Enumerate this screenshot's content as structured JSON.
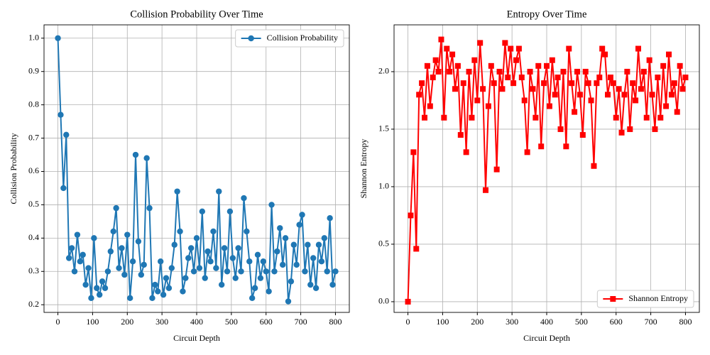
{
  "chart_data": [
    {
      "type": "line",
      "title": "Collision Probability Over Time",
      "x_label": "Circuit Depth",
      "y_label": "Collision Probability",
      "x": [
        0,
        8,
        16,
        24,
        32,
        40,
        48,
        56,
        64,
        72,
        80,
        88,
        96,
        104,
        112,
        120,
        128,
        136,
        144,
        152,
        160,
        168,
        176,
        184,
        192,
        200,
        208,
        216,
        224,
        232,
        240,
        248,
        256,
        264,
        272,
        280,
        288,
        296,
        304,
        312,
        320,
        328,
        336,
        344,
        352,
        360,
        368,
        376,
        384,
        392,
        400,
        408,
        416,
        424,
        432,
        440,
        448,
        456,
        464,
        472,
        480,
        488,
        496,
        504,
        512,
        520,
        528,
        536,
        544,
        552,
        560,
        568,
        576,
        584,
        592,
        600,
        608,
        616,
        624,
        632,
        640,
        648,
        656,
        664,
        672,
        680,
        688,
        696,
        704,
        712,
        720,
        728,
        736,
        744,
        752,
        760,
        768,
        776,
        784,
        792,
        800
      ],
      "series": [
        {
          "name": "Collision Probability",
          "color": "#1f77b4",
          "marker": "o",
          "values": [
            1.0,
            0.77,
            0.55,
            0.71,
            0.34,
            0.37,
            0.3,
            0.41,
            0.33,
            0.35,
            0.26,
            0.31,
            0.22,
            0.4,
            0.25,
            0.23,
            0.27,
            0.25,
            0.3,
            0.36,
            0.42,
            0.49,
            0.31,
            0.37,
            0.29,
            0.41,
            0.22,
            0.33,
            0.65,
            0.39,
            0.29,
            0.32,
            0.64,
            0.49,
            0.22,
            0.26,
            0.24,
            0.33,
            0.23,
            0.28,
            0.25,
            0.31,
            0.38,
            0.54,
            0.42,
            0.24,
            0.28,
            0.34,
            0.37,
            0.3,
            0.4,
            0.31,
            0.48,
            0.28,
            0.36,
            0.33,
            0.42,
            0.31,
            0.54,
            0.26,
            0.37,
            0.3,
            0.48,
            0.34,
            0.28,
            0.37,
            0.3,
            0.52,
            0.42,
            0.33,
            0.22,
            0.25,
            0.35,
            0.28,
            0.33,
            0.3,
            0.24,
            0.5,
            0.3,
            0.36,
            0.43,
            0.32,
            0.4,
            0.21,
            0.27,
            0.38,
            0.32,
            0.44,
            0.47,
            0.3,
            0.38,
            0.26,
            0.34,
            0.25,
            0.38,
            0.33,
            0.4,
            0.3,
            0.46,
            0.26,
            0.3
          ]
        }
      ],
      "xlim": [
        -40,
        840
      ],
      "xticks": [
        0,
        100,
        200,
        300,
        400,
        500,
        600,
        700,
        800
      ],
      "ylim": [
        0.177,
        1.04
      ],
      "yticks": [
        0.2,
        0.3,
        0.4,
        0.5,
        0.6,
        0.7,
        0.8,
        0.9,
        {
          "value": 1,
          "label": "1.0"
        }
      ],
      "grid": true,
      "legend": "upper right"
    },
    {
      "type": "line",
      "title": "Entropy Over Time",
      "x_label": "Circuit Depth",
      "y_label": "Shannon Entropy",
      "x": [
        0,
        8,
        16,
        24,
        32,
        40,
        48,
        56,
        64,
        72,
        80,
        88,
        96,
        104,
        112,
        120,
        128,
        136,
        144,
        152,
        160,
        168,
        176,
        184,
        192,
        200,
        208,
        216,
        224,
        232,
        240,
        248,
        256,
        264,
        272,
        280,
        288,
        296,
        304,
        312,
        320,
        328,
        336,
        344,
        352,
        360,
        368,
        376,
        384,
        392,
        400,
        408,
        416,
        424,
        432,
        440,
        448,
        456,
        464,
        472,
        480,
        488,
        496,
        504,
        512,
        520,
        528,
        536,
        544,
        552,
        560,
        568,
        576,
        584,
        592,
        600,
        608,
        616,
        624,
        632,
        640,
        648,
        656,
        664,
        672,
        680,
        688,
        696,
        704,
        712,
        720,
        728,
        736,
        744,
        752,
        760,
        768,
        776,
        784,
        792,
        800
      ],
      "series": [
        {
          "name": "Shannon Entropy",
          "color": "#ff0000",
          "marker": "s",
          "values": [
            0.0,
            0.75,
            1.3,
            0.46,
            1.8,
            1.9,
            1.6,
            2.05,
            1.7,
            1.95,
            2.1,
            2.0,
            2.28,
            1.6,
            2.2,
            2.0,
            2.15,
            1.85,
            2.05,
            1.45,
            1.9,
            1.3,
            2.0,
            1.6,
            2.1,
            1.75,
            2.25,
            1.85,
            0.97,
            1.7,
            2.05,
            1.9,
            1.15,
            2.0,
            1.85,
            2.25,
            1.95,
            2.2,
            1.9,
            2.1,
            2.2,
            1.95,
            1.75,
            1.3,
            2.0,
            1.85,
            1.6,
            2.05,
            1.35,
            1.9,
            2.05,
            1.7,
            2.1,
            1.8,
            1.95,
            1.5,
            2.0,
            1.35,
            2.2,
            1.9,
            1.65,
            2.0,
            1.8,
            1.45,
            2.0,
            1.9,
            1.75,
            1.18,
            1.9,
            1.95,
            2.2,
            2.15,
            1.8,
            1.95,
            1.9,
            1.6,
            1.85,
            1.47,
            1.8,
            2.0,
            1.5,
            1.9,
            1.75,
            2.2,
            1.85,
            2.0,
            1.6,
            2.1,
            1.8,
            1.5,
            1.95,
            1.6,
            2.05,
            1.7,
            2.15,
            1.8,
            1.9,
            1.65,
            2.05,
            1.85,
            1.95
          ]
        }
      ],
      "xlim": [
        -40,
        840
      ],
      "xticks": [
        0,
        100,
        200,
        300,
        400,
        500,
        600,
        700,
        800
      ],
      "ylim": [
        -0.093,
        2.407
      ],
      "yticks": [
        {
          "value": 0,
          "label": "0.0"
        },
        0.5,
        {
          "value": 1,
          "label": "1.0"
        },
        1.5,
        {
          "value": 2,
          "label": "2.0"
        }
      ],
      "grid": true,
      "legend": "lower right"
    }
  ]
}
